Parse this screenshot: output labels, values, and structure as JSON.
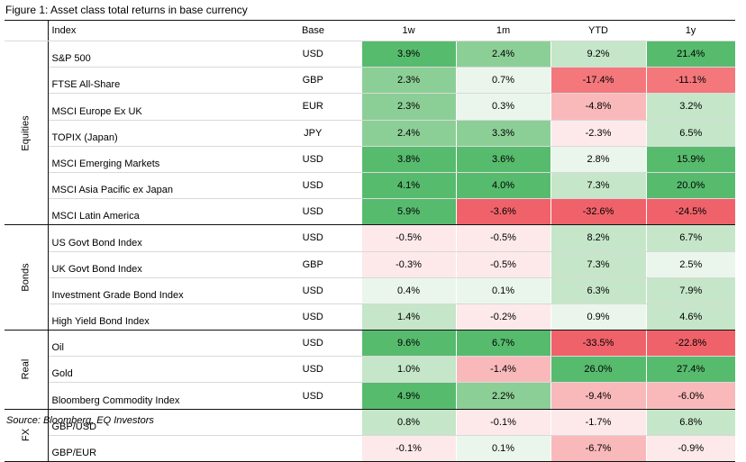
{
  "title": "Figure 1: Asset class total returns in base currency",
  "source": "Source: Bloomberg, EQ Investors",
  "colors": {
    "strong_green": "#57bb6e",
    "green": "#8ccf96",
    "light_green": "#c5e6c8",
    "pale_green": "#eaf6eb",
    "pale_red": "#fde9ea",
    "light_red": "#f9b9bb",
    "red": "#f4777b",
    "strong_red": "#f0626a"
  },
  "chart_data": {
    "type": "table",
    "headers": [
      "Index",
      "Base",
      "1w",
      "1m",
      "YTD",
      "1y"
    ],
    "groups": [
      {
        "name": "Equities",
        "rows": [
          {
            "index": "S&P 500",
            "base": "USD",
            "values": [
              3.9,
              2.4,
              9.2,
              21.4
            ],
            "labels": [
              "3.9%",
              "2.4%",
              "9.2%",
              "21.4%"
            ]
          },
          {
            "index": "FTSE All-Share",
            "base": "GBP",
            "values": [
              2.3,
              0.7,
              -17.4,
              -11.1
            ],
            "labels": [
              "2.3%",
              "0.7%",
              "-17.4%",
              "-11.1%"
            ]
          },
          {
            "index": "MSCI Europe Ex UK",
            "base": "EUR",
            "values": [
              2.3,
              0.3,
              -4.8,
              3.2
            ],
            "labels": [
              "2.3%",
              "0.3%",
              "-4.8%",
              "3.2%"
            ]
          },
          {
            "index": "TOPIX (Japan)",
            "base": "JPY",
            "values": [
              2.4,
              3.3,
              -2.3,
              6.5
            ],
            "labels": [
              "2.4%",
              "3.3%",
              "-2.3%",
              "6.5%"
            ]
          },
          {
            "index": "MSCI Emerging Markets",
            "base": "USD",
            "values": [
              3.8,
              3.6,
              2.8,
              15.9
            ],
            "labels": [
              "3.8%",
              "3.6%",
              "2.8%",
              "15.9%"
            ]
          },
          {
            "index": "MSCI Asia Pacific ex Japan",
            "base": "USD",
            "values": [
              4.1,
              4.0,
              7.3,
              20.0
            ],
            "labels": [
              "4.1%",
              "4.0%",
              "7.3%",
              "20.0%"
            ]
          },
          {
            "index": "MSCI Latin America",
            "base": "USD",
            "values": [
              5.9,
              -3.6,
              -32.6,
              -24.5
            ],
            "labels": [
              "5.9%",
              "-3.6%",
              "-32.6%",
              "-24.5%"
            ]
          }
        ]
      },
      {
        "name": "Bonds",
        "rows": [
          {
            "index": "US Govt Bond Index",
            "base": "USD",
            "values": [
              -0.5,
              -0.5,
              8.2,
              6.7
            ],
            "labels": [
              "-0.5%",
              "-0.5%",
              "8.2%",
              "6.7%"
            ]
          },
          {
            "index": "UK Govt Bond Index",
            "base": "GBP",
            "values": [
              -0.3,
              -0.5,
              7.3,
              2.5
            ],
            "labels": [
              "-0.3%",
              "-0.5%",
              "7.3%",
              "2.5%"
            ]
          },
          {
            "index": "Investment Grade Bond Index",
            "base": "USD",
            "values": [
              0.4,
              0.1,
              6.3,
              7.9
            ],
            "labels": [
              "0.4%",
              "0.1%",
              "6.3%",
              "7.9%"
            ]
          },
          {
            "index": "High Yield Bond Index",
            "base": "USD",
            "values": [
              1.4,
              -0.2,
              0.9,
              4.6
            ],
            "labels": [
              "1.4%",
              "-0.2%",
              "0.9%",
              "4.6%"
            ]
          }
        ]
      },
      {
        "name": "Real",
        "rows": [
          {
            "index": "Oil",
            "base": "USD",
            "values": [
              9.6,
              6.7,
              -33.5,
              -22.8
            ],
            "labels": [
              "9.6%",
              "6.7%",
              "-33.5%",
              "-22.8%"
            ]
          },
          {
            "index": "Gold",
            "base": "USD",
            "values": [
              1.0,
              -1.4,
              26.0,
              27.4
            ],
            "labels": [
              "1.0%",
              "-1.4%",
              "26.0%",
              "27.4%"
            ]
          },
          {
            "index": "Bloomberg Commodity Index",
            "base": "USD",
            "values": [
              4.9,
              2.2,
              -9.4,
              -6.0
            ],
            "labels": [
              "4.9%",
              "2.2%",
              "-9.4%",
              "-6.0%"
            ]
          }
        ]
      },
      {
        "name": "FX",
        "rows": [
          {
            "index": "GBP/USD",
            "base": "",
            "values": [
              0.8,
              -0.1,
              -1.7,
              6.8
            ],
            "labels": [
              "0.8%",
              "-0.1%",
              "-1.7%",
              "6.8%"
            ]
          },
          {
            "index": "GBP/EUR",
            "base": "",
            "values": [
              -0.1,
              0.1,
              -6.7,
              -0.9
            ],
            "labels": [
              "-0.1%",
              "0.1%",
              "-6.7%",
              "-0.9%"
            ]
          }
        ]
      }
    ]
  }
}
